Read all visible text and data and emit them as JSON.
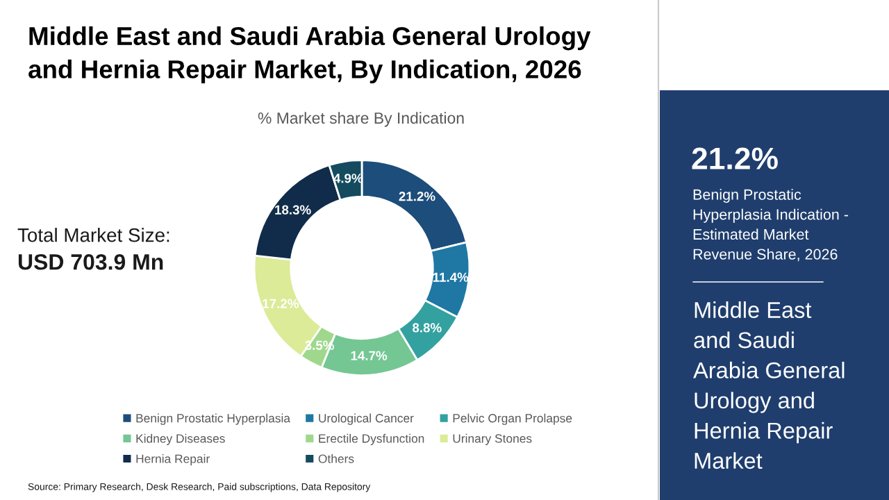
{
  "chart_data": {
    "type": "donut",
    "title": "Middle East and Saudi Arabia General Urology and Hernia Repair Market, By Indication, 2026",
    "subtitle": "% Market share By Indication",
    "categories": [
      "Benign Prostatic Hyperplasia",
      "Urological Cancer",
      "Pelvic Organ Prolapse",
      "Kidney Diseases",
      "Erectile Dysfunction",
      "Urinary Stones",
      "Hernia Repair",
      "Others"
    ],
    "values": [
      21.2,
      11.4,
      8.8,
      14.7,
      3.5,
      17.2,
      18.3,
      4.9
    ],
    "colors": [
      "#1d4d7a",
      "#1f78a4",
      "#33a1a0",
      "#74c793",
      "#9fd88c",
      "#dbeb98",
      "#112c4a",
      "#144b5e"
    ],
    "value_labels": [
      "21.2%",
      "11.4%",
      "8.8%",
      "14.7%",
      "3.5%",
      "17.2%",
      "18.3%",
      "4.9%"
    ],
    "legend": "bottom",
    "annotations": [
      "Total Market Size:",
      "USD 703.9 Mn",
      "21.2%",
      "Benign Prostatic Hyperplasia Indication - Estimated Market Revenue Share, 2026",
      "Middle East and Saudi Arabia General Urology and Hernia Repair Market",
      "Source: Primary Research, Desk Research, Paid subscriptions, Data Repository"
    ]
  }
}
